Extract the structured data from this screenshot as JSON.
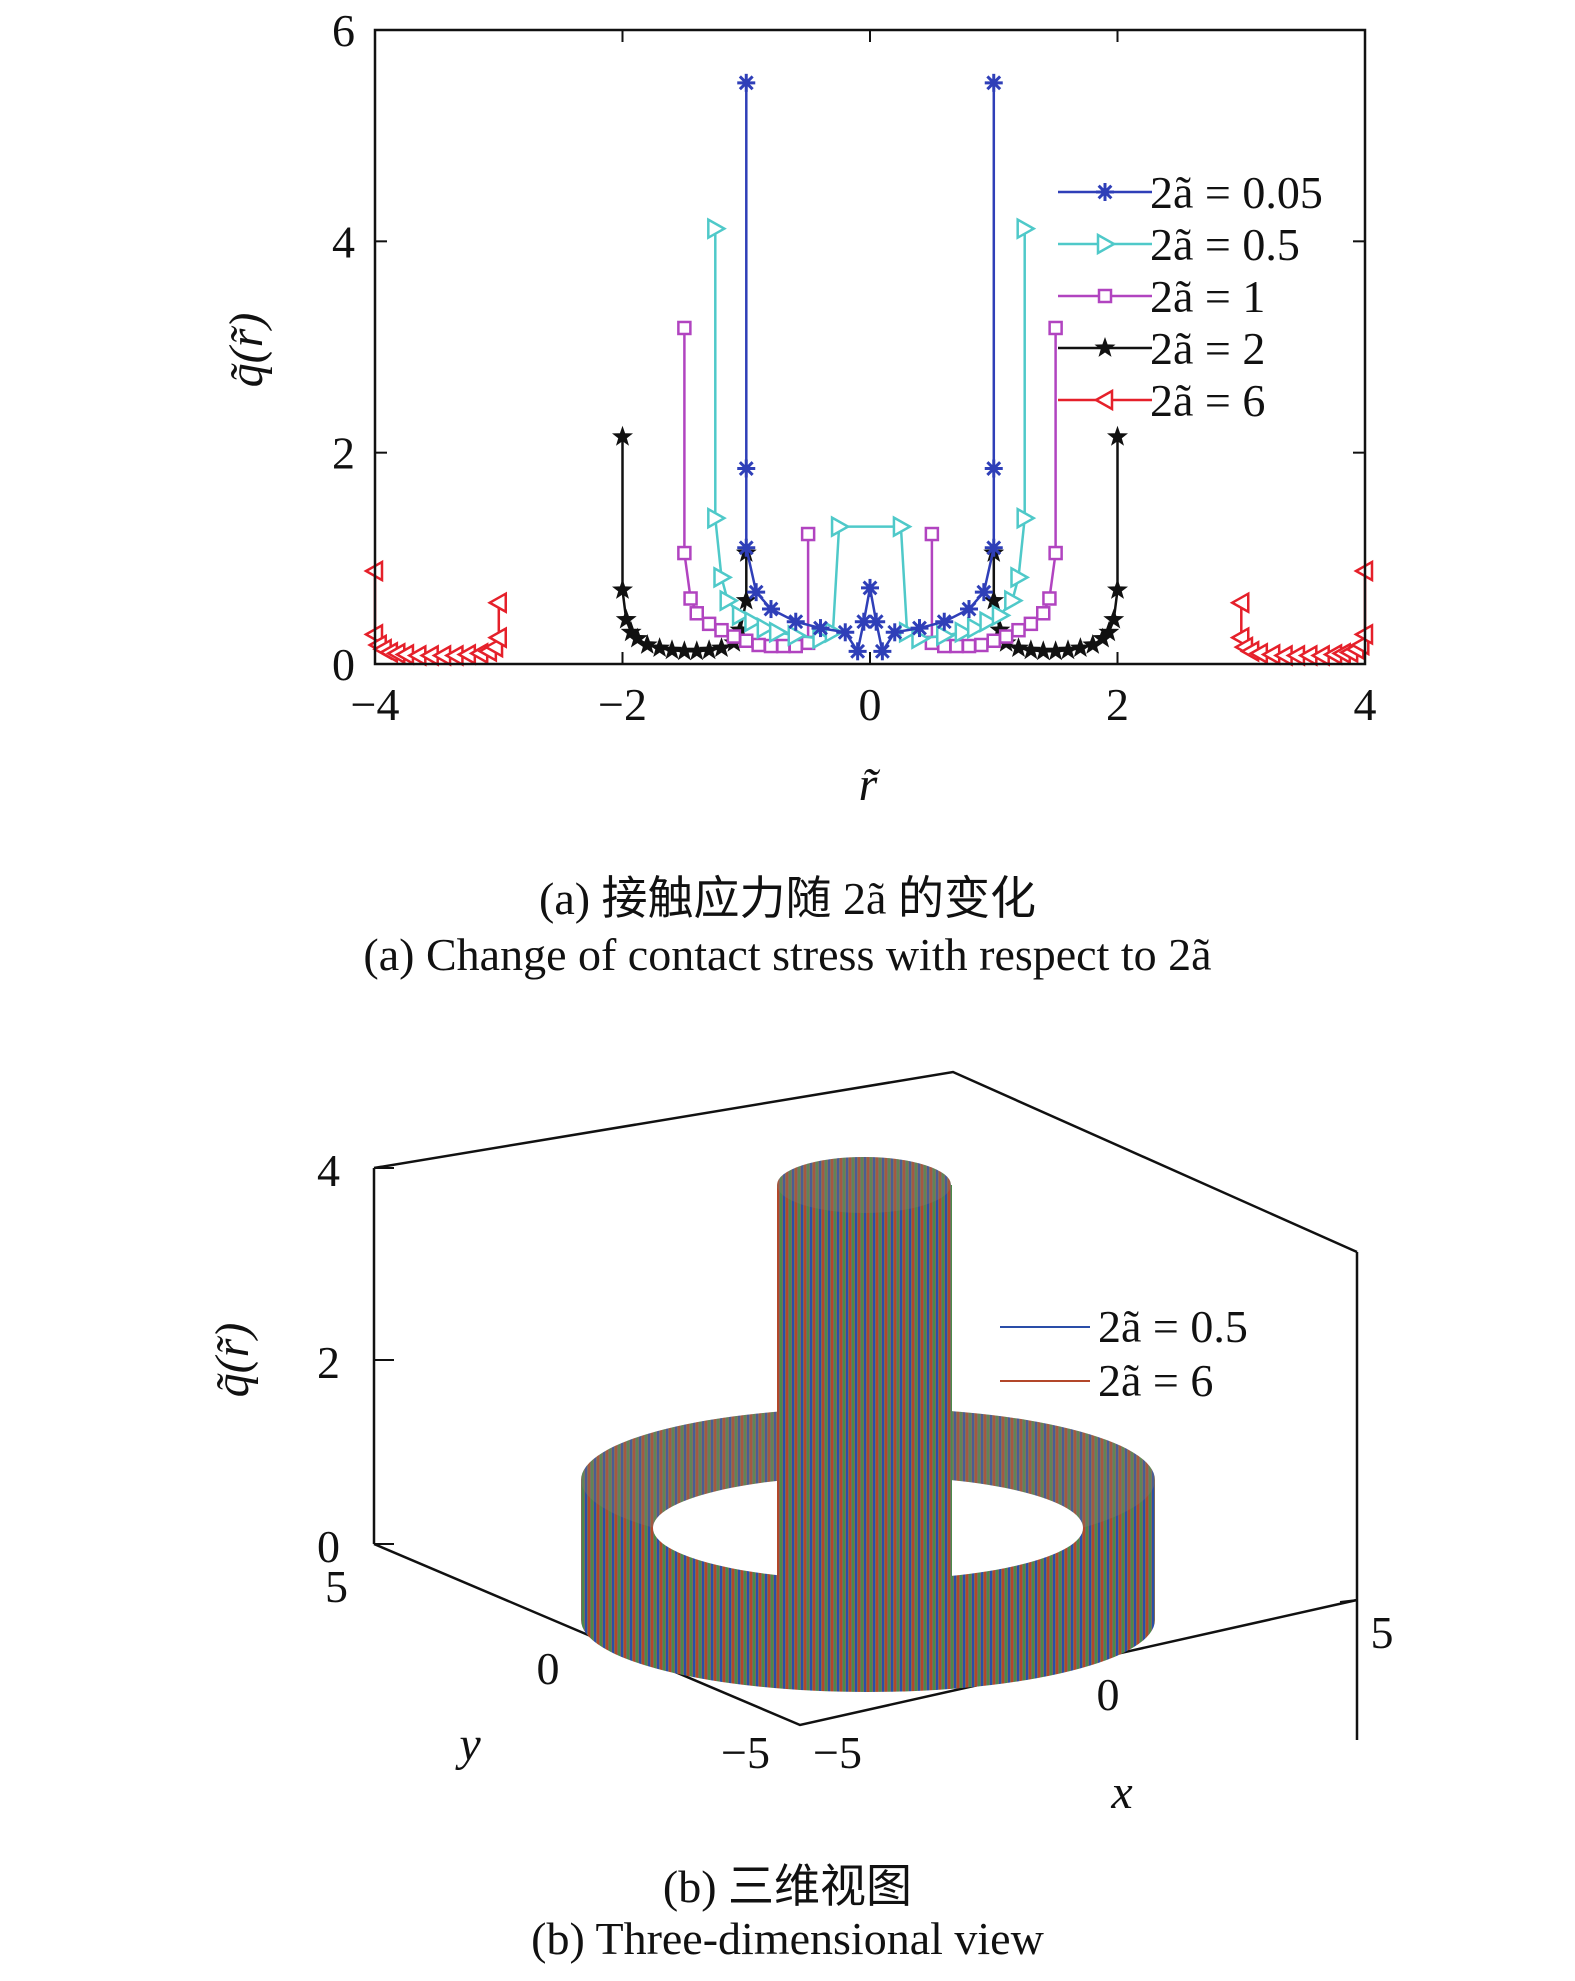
{
  "colors": {
    "series_a005": "#2f3fb8",
    "series_a05": "#4fc9c9",
    "series_a1": "#b144c0",
    "series_a2": "#111111",
    "series_a6": "#e5202a",
    "view_a05": "#2a4ea8",
    "view_a6": "#b3472a"
  },
  "chart_data": [
    {
      "type": "line",
      "xlabel": "r̃",
      "ylabel": "q̃(r̃)",
      "xlim": [
        -4,
        4
      ],
      "ylim": [
        0,
        6
      ],
      "xticks": [
        "−4",
        "−2",
        "0",
        "2",
        "4"
      ],
      "yticks": [
        "0",
        "2",
        "4",
        "6"
      ],
      "grid": false,
      "legend_position": "top-right",
      "series": [
        {
          "name": "2ã = 0.05",
          "marker": "asterisk",
          "x": [
            -1.0,
            -1.0,
            -1.0,
            -0.92,
            -0.8,
            -0.6,
            -0.4,
            -0.2,
            -0.1,
            -0.05,
            0.0,
            0.05,
            0.1,
            0.2,
            0.4,
            0.6,
            0.8,
            0.92,
            1.0,
            1.0,
            1.0
          ],
          "y": [
            5.5,
            1.85,
            1.1,
            0.68,
            0.52,
            0.4,
            0.34,
            0.3,
            0.12,
            0.4,
            0.72,
            0.4,
            0.12,
            0.3,
            0.34,
            0.4,
            0.52,
            0.68,
            1.1,
            1.85,
            5.5
          ]
        },
        {
          "name": "2ã = 0.5",
          "marker": "triangle-right",
          "x": [
            -1.25,
            -1.25,
            -1.2,
            -1.15,
            -1.05,
            -0.95,
            -0.85,
            -0.75,
            -0.6,
            -0.4,
            -0.3,
            -0.25,
            0.25,
            0.3,
            0.4,
            0.6,
            0.75,
            0.85,
            0.95,
            1.05,
            1.15,
            1.2,
            1.25,
            1.25
          ],
          "y": [
            4.12,
            1.38,
            0.82,
            0.6,
            0.46,
            0.4,
            0.34,
            0.3,
            0.27,
            0.24,
            0.3,
            1.3,
            1.3,
            0.3,
            0.24,
            0.27,
            0.3,
            0.34,
            0.4,
            0.46,
            0.6,
            0.82,
            1.38,
            4.12
          ]
        },
        {
          "name": "2ã = 1",
          "marker": "square",
          "x": [
            -1.5,
            -1.5,
            -1.45,
            -1.4,
            -1.3,
            -1.2,
            -1.1,
            -1.0,
            -0.9,
            -0.8,
            -0.7,
            -0.6,
            -0.5,
            -0.5,
            0.5,
            0.5,
            0.6,
            0.7,
            0.8,
            0.9,
            1.0,
            1.1,
            1.2,
            1.3,
            1.4,
            1.45,
            1.5,
            1.5
          ],
          "y": [
            3.18,
            1.05,
            0.62,
            0.48,
            0.38,
            0.32,
            0.26,
            0.22,
            0.18,
            0.17,
            0.17,
            0.17,
            0.2,
            1.23,
            1.23,
            0.2,
            0.17,
            0.17,
            0.17,
            0.18,
            0.22,
            0.26,
            0.32,
            0.38,
            0.48,
            0.62,
            1.05,
            3.18
          ]
        },
        {
          "name": "2ã = 2",
          "marker": "star",
          "x": [
            -2.0,
            -2.0,
            -1.97,
            -1.93,
            -1.88,
            -1.8,
            -1.7,
            -1.6,
            -1.5,
            -1.4,
            -1.3,
            -1.2,
            -1.1,
            -1.05,
            -1.0,
            -1.0,
            1.0,
            1.0,
            1.05,
            1.1,
            1.2,
            1.3,
            1.4,
            1.5,
            1.6,
            1.7,
            1.8,
            1.88,
            1.93,
            1.97,
            2.0,
            2.0
          ],
          "y": [
            2.15,
            0.7,
            0.42,
            0.3,
            0.24,
            0.18,
            0.15,
            0.13,
            0.12,
            0.12,
            0.13,
            0.15,
            0.2,
            0.32,
            0.6,
            1.05,
            1.05,
            0.6,
            0.32,
            0.2,
            0.15,
            0.13,
            0.12,
            0.12,
            0.13,
            0.15,
            0.18,
            0.24,
            0.3,
            0.42,
            0.7,
            2.15
          ]
        },
        {
          "name": "2ã = 6",
          "marker": "triangle-left",
          "x": [
            -4.0,
            -4.0,
            -3.97,
            -3.93,
            -3.88,
            -3.82,
            -3.75,
            -3.65,
            -3.55,
            -3.45,
            -3.35,
            -3.25,
            -3.15,
            -3.08,
            -3.03,
            -3.0,
            -3.0,
            3.0,
            3.0,
            3.03,
            3.08,
            3.15,
            3.25,
            3.35,
            3.45,
            3.55,
            3.65,
            3.75,
            3.82,
            3.88,
            3.93,
            3.97,
            4.0,
            4.0
          ],
          "y": [
            0.88,
            0.28,
            0.18,
            0.14,
            0.11,
            0.1,
            0.09,
            0.08,
            0.08,
            0.08,
            0.08,
            0.09,
            0.1,
            0.12,
            0.16,
            0.25,
            0.58,
            0.58,
            0.25,
            0.16,
            0.12,
            0.1,
            0.09,
            0.08,
            0.08,
            0.08,
            0.08,
            0.09,
            0.1,
            0.11,
            0.14,
            0.18,
            0.28,
            0.88
          ]
        }
      ]
    },
    {
      "type": "surface3d",
      "xlabel": "x",
      "ylabel": "y",
      "zlabel": "q̃(r̃)",
      "zticks": [
        "0",
        "2",
        "4"
      ],
      "xticks": [
        "−5",
        "0",
        "5"
      ],
      "yticks": [
        "−5",
        "0",
        "5"
      ],
      "legend_position": "top-right",
      "series": [
        {
          "name": "2ã = 0.5",
          "shape": "cylinder",
          "radius": 1.25,
          "height": 4.0
        },
        {
          "name": "2ã = 6",
          "shape": "annulus",
          "inner_radius": 3.0,
          "outer_radius": 4.0,
          "height": 0.9
        }
      ]
    }
  ],
  "captions": {
    "a_cn": "(a) 接触应力随 2ã 的变化",
    "a_en": "(a) Change of contact stress with respect to 2ã",
    "b_cn": "(b) 三维视图",
    "b_en": "(b) Three-dimensional view"
  }
}
